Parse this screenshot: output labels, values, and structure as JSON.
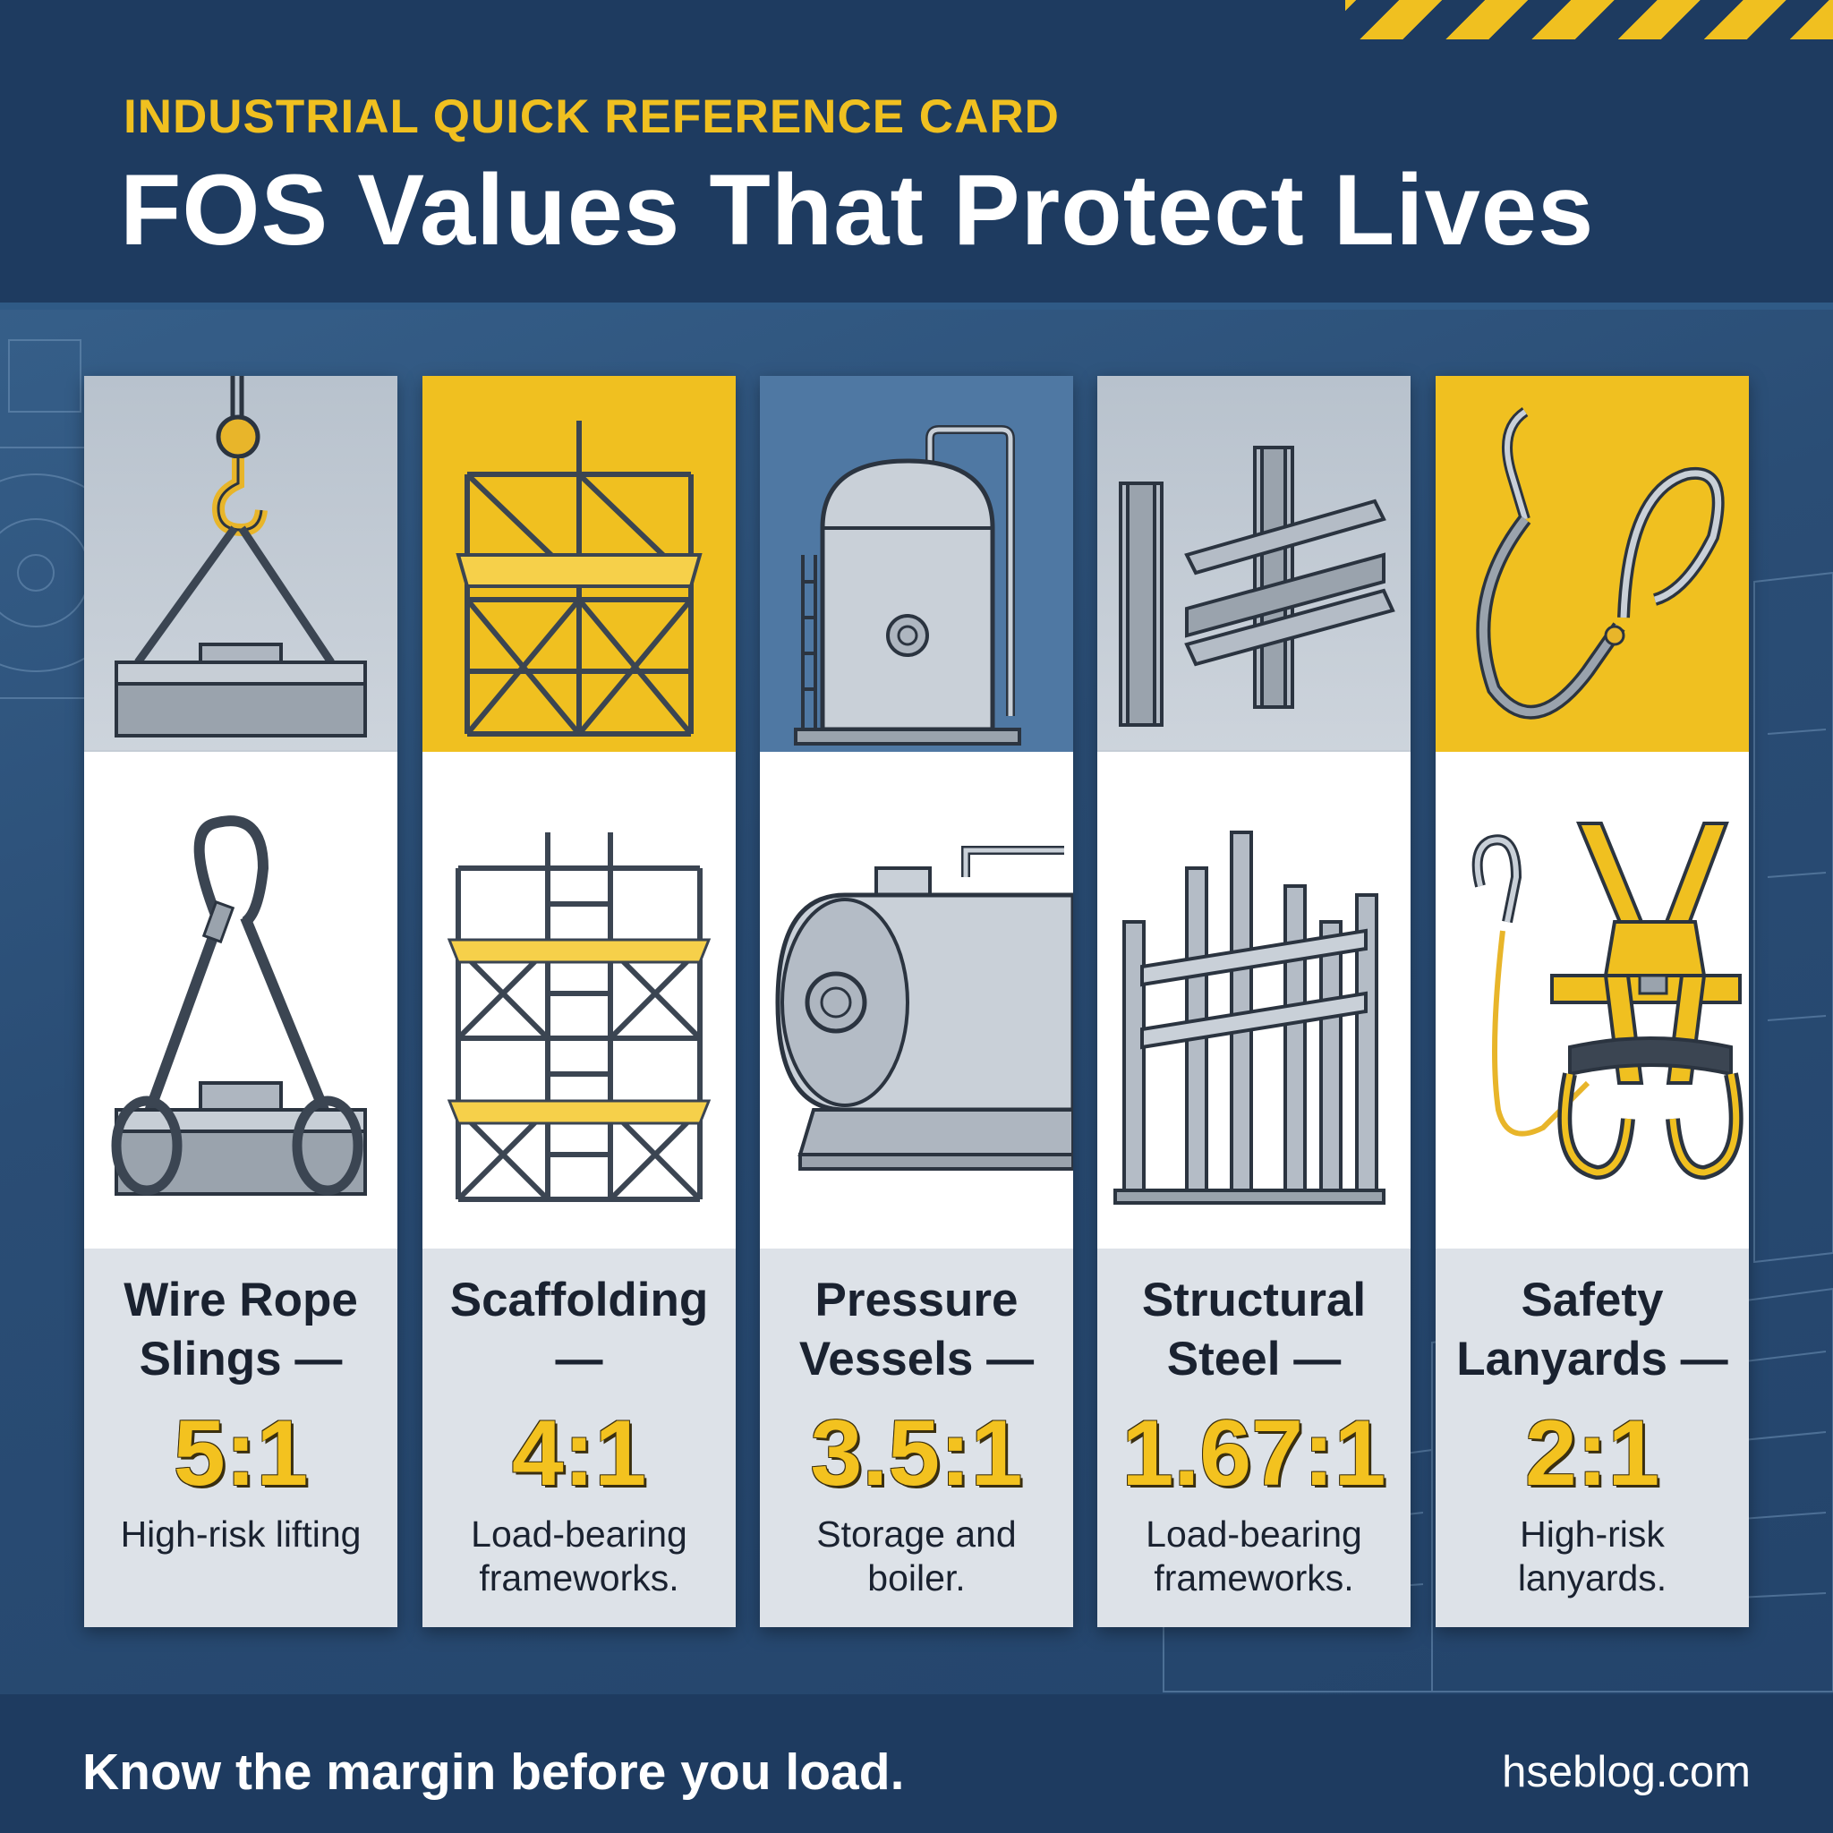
{
  "header": {
    "kicker": "INDUSTRIAL QUICK REFERENCE CARD",
    "title": "FOS Values That Protect Lives"
  },
  "cards": [
    {
      "name": "Wire Rope Slings —",
      "ratio": "5:1",
      "description": "High-risk lifting",
      "theme": "gray",
      "top_icon": "crane-hook-lift-icon",
      "bottom_icon": "wire-rope-sling-icon"
    },
    {
      "name": "Scaffolding —",
      "ratio": "4:1",
      "description": "Load-bearing frameworks.",
      "theme": "yellow",
      "top_icon": "scaffold-tower-icon",
      "bottom_icon": "scaffold-frame-icon"
    },
    {
      "name": "Pressure Vessels —",
      "ratio": "3.5:1",
      "description": "Storage and boiler.",
      "theme": "blue",
      "top_icon": "vertical-tank-icon",
      "bottom_icon": "horizontal-vessel-icon"
    },
    {
      "name": "Structural Steel —",
      "ratio": "1.67:1",
      "description": "Load-bearing frameworks.",
      "theme": "gray",
      "top_icon": "i-beam-icon",
      "bottom_icon": "steel-frame-icon"
    },
    {
      "name": "Safety Lanyards —",
      "ratio": "2:1",
      "description": "High-risk lanyards.",
      "theme": "yellow",
      "top_icon": "lanyard-hooks-icon",
      "bottom_icon": "safety-harness-icon"
    }
  ],
  "footer": {
    "tagline": "Know the margin before you load.",
    "site": "hseblog.com"
  },
  "colors": {
    "accent_yellow": "#f0c020",
    "navy": "#1e3b60",
    "steel_gray": "#9aa3ad"
  }
}
